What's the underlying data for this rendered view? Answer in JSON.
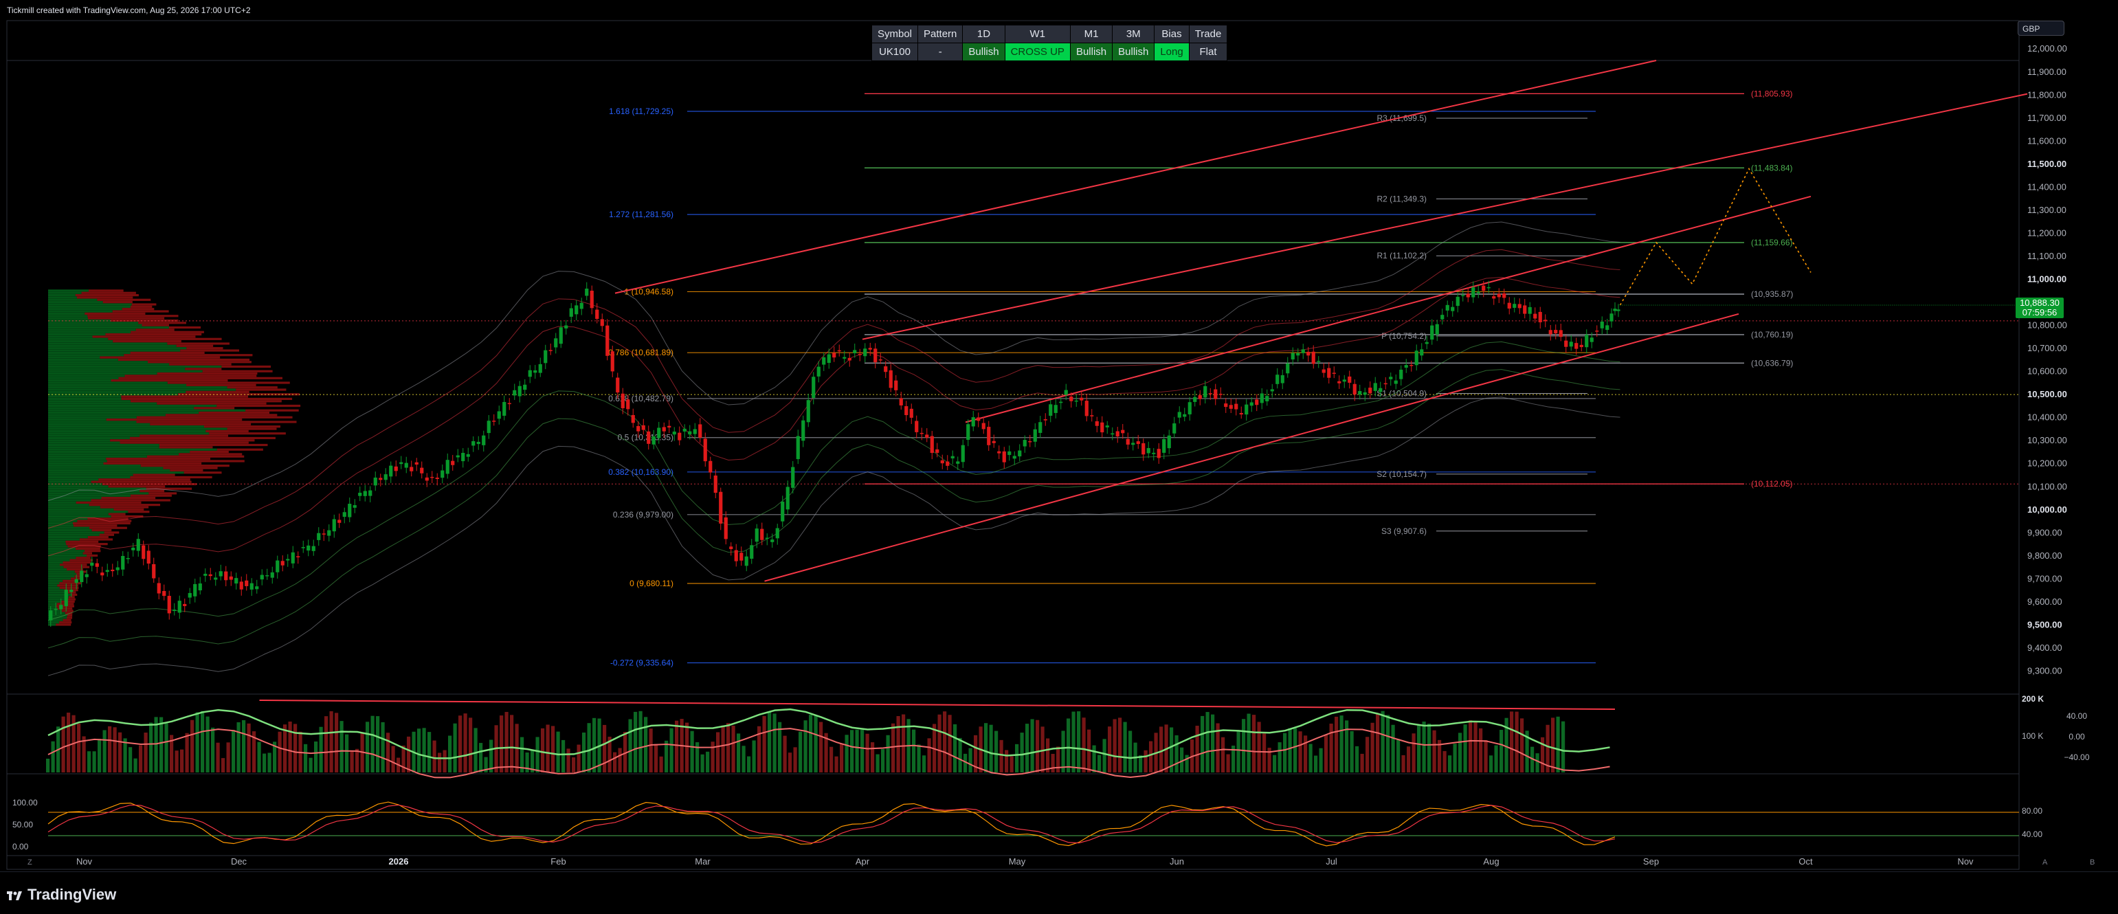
{
  "header": {
    "attribution": "Tickmill created with TradingView.com, Aug 25, 2026 17:00 UTC+2"
  },
  "brand": {
    "name": "TradingView"
  },
  "currency": "GBP",
  "price_badge": {
    "price": "10,888.30",
    "countdown": "07:59:56"
  },
  "signal_table": {
    "headers": [
      "Symbol",
      "Pattern",
      "1D",
      "W1",
      "M1",
      "3M",
      "Bias",
      "Trade"
    ],
    "values": [
      "UK100",
      "-",
      "Bullish",
      "CROSS UP",
      "Bullish",
      "Bullish",
      "Long",
      "Flat"
    ]
  },
  "colors": {
    "bull": "#089a2c",
    "bear": "#e01a1a",
    "channel": "#f23645",
    "fib": "#ff9800",
    "fib_blue": "#2962ff",
    "pivot": "#9598a1",
    "target_red": "#f23645",
    "target_green": "#4caf50",
    "bg": "#000000"
  },
  "chart_data": {
    "type": "candlestick",
    "symbol": "UK100",
    "ylim": [
      9200,
      11950
    ],
    "y_ticks": [
      {
        "v": 12000,
        "label": "12,000.00"
      },
      {
        "v": 11900,
        "label": "11,900.00"
      },
      {
        "v": 11800,
        "label": "11,800.00"
      },
      {
        "v": 11700,
        "label": "11,700.00"
      },
      {
        "v": 11600,
        "label": "11,600.00"
      },
      {
        "v": 11500,
        "label": "11,500.00",
        "bold": true
      },
      {
        "v": 11400,
        "label": "11,400.00"
      },
      {
        "v": 11300,
        "label": "11,300.00"
      },
      {
        "v": 11200,
        "label": "11,200.00"
      },
      {
        "v": 11100,
        "label": "11,100.00"
      },
      {
        "v": 11000,
        "label": "11,000.00",
        "bold": true
      },
      {
        "v": 10800,
        "label": "10,800.00"
      },
      {
        "v": 10700,
        "label": "10,700.00"
      },
      {
        "v": 10600,
        "label": "10,600.00"
      },
      {
        "v": 10500,
        "label": "10,500.00",
        "bold": true
      },
      {
        "v": 10400,
        "label": "10,400.00"
      },
      {
        "v": 10300,
        "label": "10,300.00"
      },
      {
        "v": 10200,
        "label": "10,200.00"
      },
      {
        "v": 10100,
        "label": "10,100.00"
      },
      {
        "v": 10000,
        "label": "10,000.00",
        "bold": true
      },
      {
        "v": 9900,
        "label": "9,900.00"
      },
      {
        "v": 9800,
        "label": "9,800.00"
      },
      {
        "v": 9700,
        "label": "9,700.00"
      },
      {
        "v": 9600,
        "label": "9,600.00"
      },
      {
        "v": 9500,
        "label": "9,500.00",
        "bold": true
      },
      {
        "v": 9400,
        "label": "9,400.00"
      },
      {
        "v": 9300,
        "label": "9,300.00"
      }
    ],
    "x_axis": [
      {
        "label": "Nov",
        "day": 7
      },
      {
        "label": "Dec",
        "day": 37
      },
      {
        "label": "2026",
        "day": 68,
        "bold": true
      },
      {
        "label": "Feb",
        "day": 99
      },
      {
        "label": "Mar",
        "day": 127
      },
      {
        "label": "Apr",
        "day": 158
      },
      {
        "label": "May",
        "day": 188
      },
      {
        "label": "Jun",
        "day": 219
      },
      {
        "label": "Jul",
        "day": 249
      },
      {
        "label": "Aug",
        "day": 280
      },
      {
        "label": "Sep",
        "day": 311
      },
      {
        "label": "Oct",
        "day": 341
      },
      {
        "label": "Nov",
        "day": 372
      }
    ],
    "price_path": [
      [
        0,
        9520
      ],
      [
        3,
        9600
      ],
      [
        6,
        9700
      ],
      [
        9,
        9760
      ],
      [
        12,
        9720
      ],
      [
        15,
        9780
      ],
      [
        18,
        9860
      ],
      [
        21,
        9700
      ],
      [
        24,
        9560
      ],
      [
        27,
        9600
      ],
      [
        30,
        9700
      ],
      [
        33,
        9720
      ],
      [
        36,
        9700
      ],
      [
        39,
        9660
      ],
      [
        42,
        9700
      ],
      [
        45,
        9760
      ],
      [
        48,
        9800
      ],
      [
        51,
        9840
      ],
      [
        54,
        9900
      ],
      [
        57,
        9960
      ],
      [
        60,
        10040
      ],
      [
        63,
        10100
      ],
      [
        66,
        10160
      ],
      [
        69,
        10200
      ],
      [
        72,
        10180
      ],
      [
        75,
        10120
      ],
      [
        78,
        10200
      ],
      [
        81,
        10240
      ],
      [
        84,
        10300
      ],
      [
        87,
        10400
      ],
      [
        90,
        10480
      ],
      [
        93,
        10560
      ],
      [
        96,
        10640
      ],
      [
        99,
        10740
      ],
      [
        102,
        10860
      ],
      [
        105,
        10940
      ],
      [
        108,
        10780
      ],
      [
        111,
        10500
      ],
      [
        114,
        10380
      ],
      [
        117,
        10300
      ],
      [
        120,
        10360
      ],
      [
        123,
        10320
      ],
      [
        126,
        10360
      ],
      [
        129,
        10160
      ],
      [
        132,
        9860
      ],
      [
        135,
        9760
      ],
      [
        138,
        9900
      ],
      [
        141,
        9860
      ],
      [
        144,
        10100
      ],
      [
        147,
        10400
      ],
      [
        150,
        10640
      ],
      [
        153,
        10680
      ],
      [
        156,
        10660
      ],
      [
        159,
        10700
      ],
      [
        162,
        10640
      ],
      [
        165,
        10500
      ],
      [
        168,
        10380
      ],
      [
        171,
        10300
      ],
      [
        174,
        10200
      ],
      [
        177,
        10220
      ],
      [
        180,
        10420
      ],
      [
        183,
        10300
      ],
      [
        186,
        10220
      ],
      [
        189,
        10260
      ],
      [
        192,
        10340
      ],
      [
        195,
        10440
      ],
      [
        198,
        10500
      ],
      [
        201,
        10460
      ],
      [
        204,
        10360
      ],
      [
        207,
        10340
      ],
      [
        210,
        10300
      ],
      [
        213,
        10260
      ],
      [
        216,
        10240
      ],
      [
        219,
        10380
      ],
      [
        222,
        10460
      ],
      [
        225,
        10520
      ],
      [
        228,
        10480
      ],
      [
        231,
        10420
      ],
      [
        234,
        10460
      ],
      [
        237,
        10500
      ],
      [
        240,
        10600
      ],
      [
        243,
        10700
      ],
      [
        246,
        10650
      ],
      [
        249,
        10580
      ],
      [
        252,
        10560
      ],
      [
        255,
        10500
      ],
      [
        258,
        10530
      ],
      [
        261,
        10560
      ],
      [
        264,
        10620
      ],
      [
        267,
        10700
      ],
      [
        270,
        10820
      ],
      [
        273,
        10900
      ],
      [
        276,
        10940
      ],
      [
        279,
        10960
      ],
      [
        282,
        10920
      ],
      [
        285,
        10880
      ],
      [
        288,
        10860
      ],
      [
        291,
        10800
      ],
      [
        294,
        10740
      ],
      [
        297,
        10700
      ],
      [
        300,
        10760
      ],
      [
        303,
        10820
      ],
      [
        305,
        10888
      ]
    ],
    "projection": [
      [
        305,
        10888
      ],
      [
        312,
        11160
      ],
      [
        319,
        10980
      ],
      [
        330,
        11480
      ],
      [
        342,
        11030
      ]
    ],
    "channel_lines": [
      {
        "from": [
          110,
          10940
        ],
        "to": [
          312,
          11950
        ]
      },
      {
        "from": [
          158,
          10740
        ],
        "to": [
          384,
          11805
        ]
      },
      {
        "from": [
          178,
          10380
        ],
        "to": [
          342,
          11360
        ]
      },
      {
        "from": [
          139,
          9690
        ],
        "to": [
          328,
          10850
        ]
      }
    ],
    "fib_levels": [
      {
        "label": "1.618 (11,729.25)",
        "value": 11729.25,
        "color": "fib_blue"
      },
      {
        "label": "1.272 (11,281.56)",
        "value": 11281.56,
        "color": "fib_blue"
      },
      {
        "label": "1 (10,946.58)",
        "value": 10946.58,
        "color": "fib"
      },
      {
        "label": "0.786 (10,681.89)",
        "value": 10681.89,
        "color": "fib"
      },
      {
        "label": "0.618 (10,482.79)",
        "value": 10482.79,
        "color": "pivot"
      },
      {
        "label": "0.5 (10,313.35)",
        "value": 10313.35,
        "color": "pivot"
      },
      {
        "label": "0.382 (10,163.90)",
        "value": 10163.9,
        "color": "fib_blue"
      },
      {
        "label": "0.236 (9,979.00)",
        "value": 9979,
        "color": "pivot"
      },
      {
        "label": "0 (9,680.11)",
        "value": 9680.11,
        "color": "fib"
      },
      {
        "label": "-0.272 (9,335.64)",
        "value": 9335.64,
        "color": "fib_blue"
      }
    ],
    "pivots": [
      {
        "label": "R3 (11,699.5)",
        "value": 11699.5
      },
      {
        "label": "R2 (11,349.3)",
        "value": 11349.3
      },
      {
        "label": "R1 (11,102.2)",
        "value": 11102.2
      },
      {
        "label": "P (10,754.2)",
        "value": 10754.2
      },
      {
        "label": "S1 (10,504.9)",
        "value": 10504.9
      },
      {
        "label": "S2 (10,154.7)",
        "value": 10154.7
      },
      {
        "label": "S3 (9,907.6)",
        "value": 9907.6
      }
    ],
    "targets": [
      {
        "label": "(11,805.93)",
        "value": 11805.93,
        "color": "target_red"
      },
      {
        "label": "(11,483.84)",
        "value": 11483.84,
        "color": "target_green"
      },
      {
        "label": "(11,159.66)",
        "value": 11159.66,
        "color": "target_green"
      },
      {
        "label": "(10,935.87)",
        "value": 10935.87,
        "color": "pivot"
      },
      {
        "label": "(10,760.19)",
        "value": 10760.19,
        "color": "pivot"
      },
      {
        "label": "(10,636.79)",
        "value": 10636.79,
        "color": "pivot"
      },
      {
        "label": "(10,112.05)",
        "value": 10112.05,
        "color": "target_red"
      }
    ],
    "dotted_levels": [
      10820,
      10500,
      10112
    ],
    "volume_panel": {
      "label_200k": "200 K",
      "label_100k": "100 K",
      "osc_ticks": [
        "40.00",
        "0.00",
        "−40.00"
      ]
    },
    "stoch_panel": {
      "left_ticks": [
        "100.00",
        "50.00",
        "0.00"
      ],
      "right_ticks": [
        "80.00",
        "40.00"
      ]
    },
    "corner_labels": {
      "left": "Z",
      "right_a": "A",
      "right_b": "B"
    }
  }
}
